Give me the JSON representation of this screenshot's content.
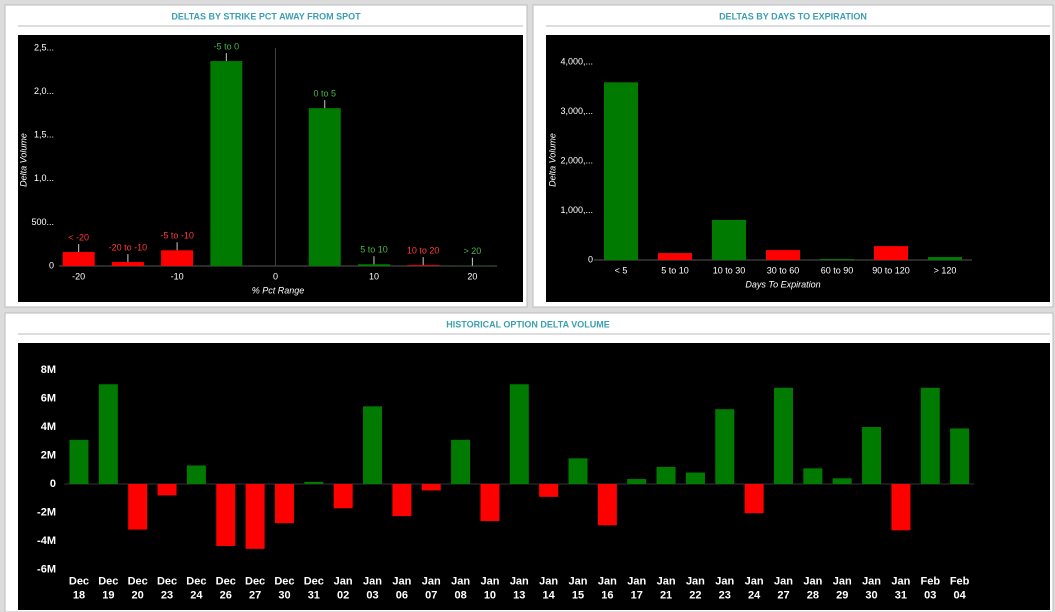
{
  "chart_data": [
    {
      "type": "bar",
      "title": "DELTAS BY STRIKE PCT AWAY FROM SPOT",
      "x": [
        -20,
        -15,
        -10,
        -5,
        5,
        10,
        15,
        20
      ],
      "bar_labels": [
        "< -20",
        "-20 to -10",
        "-5 to -10",
        "-5 to 0",
        "0 to 5",
        "5 to 10",
        "10 to 20",
        "> 20"
      ],
      "values": [
        160,
        45,
        180,
        2350,
        1810,
        20,
        10,
        3
      ],
      "colors": [
        "#ff0000",
        "#ff0000",
        "#ff0000",
        "#007a00",
        "#007a00",
        "#007a00",
        "#ff0000",
        "#007a00"
      ],
      "xlabel": "% Pct Range",
      "ylabel": "Delta Volume",
      "xlim": [
        -22,
        22.5
      ],
      "xticks": [
        -20,
        -10,
        0,
        10,
        20
      ],
      "ylim": [
        0,
        2500
      ],
      "yticks": [
        0,
        {
          "value": 500,
          "label": "500..."
        },
        {
          "value": 1000,
          "label": "1,0..."
        },
        {
          "value": 1500,
          "label": "1,5..."
        },
        {
          "value": 2000,
          "label": "2,0..."
        },
        {
          "value": 2500,
          "label": "2,5..."
        }
      ]
    },
    {
      "type": "bar",
      "title": "DELTAS BY DAYS TO EXPIRATION",
      "categories": [
        "< 5",
        "5 to 10",
        "10 to 30",
        "30 to 60",
        "60 to 90",
        "90 to 120",
        "> 120"
      ],
      "values": [
        3590,
        140,
        810,
        200,
        20,
        280,
        60
      ],
      "colors": [
        "#007a00",
        "#ff0000",
        "#007a00",
        "#ff0000",
        "#007a00",
        "#ff0000",
        "#007a00"
      ],
      "xlabel": "Days To Expiration",
      "ylabel": "Delta Volume",
      "ylim": [
        0,
        4000
      ],
      "yticks": [
        0,
        {
          "value": 1000,
          "label": "1,000,..."
        },
        {
          "value": 2000,
          "label": "2,000,..."
        },
        {
          "value": 3000,
          "label": "3,000,..."
        },
        {
          "value": 4000,
          "label": "4,000,..."
        }
      ]
    },
    {
      "type": "bar",
      "title": "HISTORICAL OPTION DELTA VOLUME",
      "categories": [
        "Dec 18",
        "Dec 19",
        "Dec 20",
        "Dec 23",
        "Dec 24",
        "Dec 26",
        "Dec 27",
        "Dec 30",
        "Dec 31",
        "Jan 02",
        "Jan 03",
        "Jan 06",
        "Jan 07",
        "Jan 08",
        "Jan 10",
        "Jan 13",
        "Jan 14",
        "Jan 15",
        "Jan 16",
        "Jan 17",
        "Jan 21",
        "Jan 22",
        "Jan 23",
        "Jan 24",
        "Jan 27",
        "Jan 28",
        "Jan 29",
        "Jan 30",
        "Jan 31",
        "Feb 03",
        "Feb 04"
      ],
      "values": [
        3.1,
        7.0,
        -3.2,
        -0.8,
        1.3,
        -4.35,
        -4.55,
        -2.75,
        0.15,
        -1.7,
        5.45,
        -2.25,
        -0.45,
        3.1,
        -2.6,
        7.0,
        -0.9,
        1.8,
        -2.9,
        0.35,
        1.2,
        0.8,
        5.25,
        -2.05,
        6.75,
        1.1,
        0.4,
        4.0,
        -3.25,
        6.75,
        3.9
      ],
      "positive_color": "#007a00",
      "negative_color": "#ff0000",
      "ylim": [
        -6,
        8
      ],
      "yticks": [
        {
          "value": -6,
          "label": "-6M"
        },
        {
          "value": -4,
          "label": "-4M"
        },
        {
          "value": -2,
          "label": "-2M"
        },
        0,
        {
          "value": 2,
          "label": "2M"
        },
        {
          "value": 4,
          "label": "4M"
        },
        {
          "value": 6,
          "label": "6M"
        },
        {
          "value": 8,
          "label": "8M"
        }
      ]
    }
  ]
}
